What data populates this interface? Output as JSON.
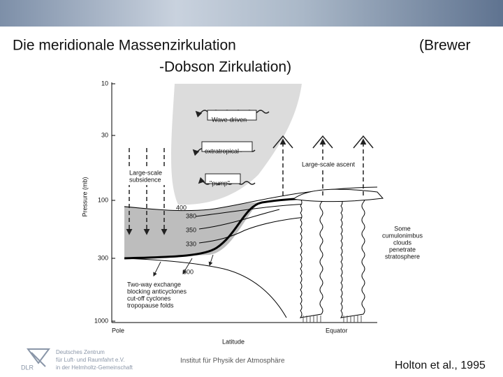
{
  "header": {
    "title_line1": "Die meridionale Massenzirkulation",
    "title_right": "(Brewer",
    "title_line2": "-Dobson Zirkulation)"
  },
  "diagram": {
    "y_axis_label": "Pressure (mb)",
    "y_ticks": [
      "10",
      "30",
      "100",
      "300",
      "1000"
    ],
    "x_axis_label": "Latitude",
    "x_left": "Pole",
    "x_right": "Equator",
    "labels": {
      "wave_driven": "Wave-driven",
      "extratropical": "extratropical",
      "pump": "\"pump\"",
      "subsidence": [
        "Large-scale",
        "subsidence"
      ],
      "ascent": "Large-scale ascent",
      "cumulonimbus": [
        "Some",
        "cumulonimbus",
        "clouds",
        "penetrate",
        "stratosphere"
      ],
      "exchange": [
        "Two-way exchange",
        "blocking anticyclones",
        "cut-off cyclones",
        "tropopause folds"
      ]
    },
    "isentropes": [
      "400",
      "380",
      "350",
      "330",
      "300"
    ]
  },
  "footer": {
    "logo": "DLR",
    "org": [
      "Deutsches Zentrum",
      "für Luft- und Raumfahrt e.V.",
      "in der Helmholtz-Gemeinschaft"
    ],
    "institute": "Institut für Physik der Atmosphäre",
    "citation": "Holton et al., 1995"
  }
}
